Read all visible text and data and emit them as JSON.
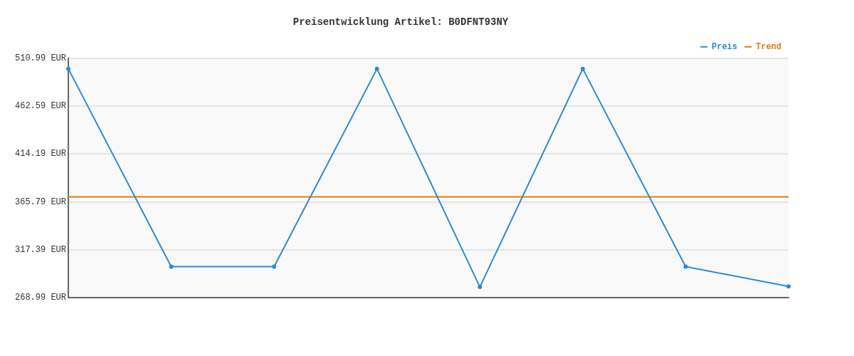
{
  "chart_data": {
    "type": "line",
    "title": "Preisentwicklung Artikel: B0DFNT93NY",
    "categories": [
      null,
      null,
      null,
      null,
      null,
      null,
      null,
      null
    ],
    "series": [
      {
        "name": "Preis",
        "color": "#2c8ad4",
        "values": [
          500.3,
          300.3,
          300.3,
          500.3,
          279.7,
          500.3,
          300.3,
          280.4
        ]
      },
      {
        "name": "Trend",
        "color": "#e07b10",
        "values": [
          370.8,
          370.8,
          370.8,
          370.8,
          370.8,
          370.8,
          370.8,
          370.8
        ],
        "marker": "none"
      }
    ],
    "ylim": [
      268.99,
      510.99
    ],
    "yticks": [
      {
        "value": 268.99,
        "label": "268.99 EUR"
      },
      {
        "value": 317.39,
        "label": "317.39 EUR"
      },
      {
        "value": 365.79,
        "label": "365.79 EUR"
      },
      {
        "value": 414.19,
        "label": "414.19 EUR"
      },
      {
        "value": 462.59,
        "label": "462.59 EUR"
      },
      {
        "value": 510.99,
        "label": "510.99 EUR"
      }
    ],
    "grid": "y",
    "legend": "top right",
    "marker": "circle",
    "line_style": "solid",
    "tick_labels": "y"
  }
}
